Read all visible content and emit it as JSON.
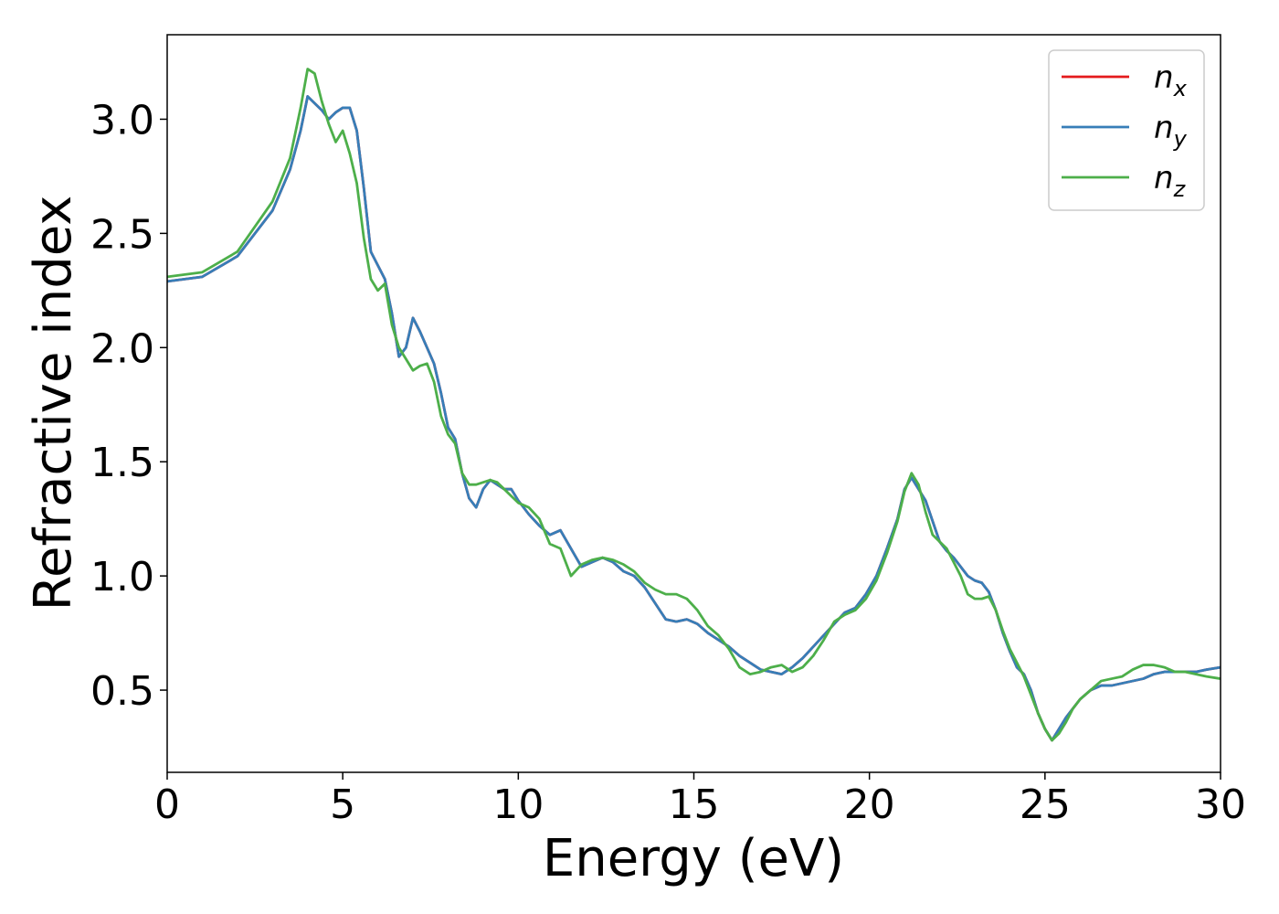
{
  "chart_data": {
    "type": "line",
    "title": "",
    "xlabel": "Energy (eV)",
    "ylabel": "Refractive index",
    "xlim": [
      0,
      30
    ],
    "ylim": [
      0.14,
      3.37
    ],
    "xticks": [
      0,
      5,
      10,
      15,
      20,
      25,
      30
    ],
    "yticks": [
      0.5,
      1.0,
      1.5,
      2.0,
      2.5,
      3.0
    ],
    "xtick_labels": [
      "0",
      "5",
      "10",
      "15",
      "20",
      "25",
      "30"
    ],
    "ytick_labels": [
      "0.5",
      "1.0",
      "1.5",
      "2.0",
      "2.5",
      "3.0"
    ],
    "grid": false,
    "legend_position": "top-right",
    "series": [
      {
        "name": "n",
        "sub": "x",
        "color": "#e41a1c",
        "x": [
          0,
          1,
          2,
          3,
          3.5,
          3.8,
          4.0,
          4.2,
          4.4,
          4.6,
          4.8,
          5.0,
          5.2,
          5.4,
          5.6,
          5.8,
          6.0,
          6.2,
          6.4,
          6.6,
          6.8,
          7.0,
          7.2,
          7.4,
          7.6,
          7.8,
          8.0,
          8.2,
          8.4,
          8.6,
          8.8,
          9.0,
          9.2,
          9.4,
          9.6,
          9.8,
          10.0,
          10.3,
          10.6,
          10.9,
          11.2,
          11.5,
          11.8,
          12.1,
          12.4,
          12.7,
          13.0,
          13.3,
          13.6,
          13.9,
          14.2,
          14.5,
          14.8,
          15.1,
          15.4,
          15.7,
          16.0,
          16.3,
          16.6,
          16.9,
          17.2,
          17.5,
          17.8,
          18.1,
          18.4,
          18.7,
          19.0,
          19.3,
          19.6,
          19.9,
          20.2,
          20.5,
          20.8,
          21.0,
          21.2,
          21.4,
          21.6,
          21.8,
          22.0,
          22.2,
          22.4,
          22.6,
          22.8,
          23.0,
          23.2,
          23.4,
          23.6,
          23.8,
          24.0,
          24.2,
          24.4,
          24.6,
          24.8,
          25.0,
          25.2,
          25.4,
          25.6,
          25.8,
          26.0,
          26.3,
          26.6,
          26.9,
          27.2,
          27.5,
          27.8,
          28.1,
          28.4,
          28.7,
          29.0,
          29.3,
          29.6,
          30.0
        ],
        "y": [
          2.29,
          2.31,
          2.4,
          2.6,
          2.78,
          2.95,
          3.1,
          3.07,
          3.04,
          3.0,
          3.03,
          3.05,
          3.05,
          2.95,
          2.7,
          2.42,
          2.36,
          2.3,
          2.15,
          1.96,
          2.0,
          2.13,
          2.07,
          2.0,
          1.93,
          1.8,
          1.65,
          1.6,
          1.45,
          1.34,
          1.3,
          1.38,
          1.42,
          1.4,
          1.38,
          1.38,
          1.33,
          1.27,
          1.22,
          1.18,
          1.2,
          1.12,
          1.04,
          1.06,
          1.08,
          1.06,
          1.02,
          1.0,
          0.95,
          0.88,
          0.81,
          0.8,
          0.81,
          0.79,
          0.75,
          0.72,
          0.69,
          0.65,
          0.62,
          0.59,
          0.58,
          0.57,
          0.6,
          0.64,
          0.69,
          0.74,
          0.79,
          0.84,
          0.86,
          0.92,
          1.0,
          1.12,
          1.25,
          1.38,
          1.43,
          1.38,
          1.33,
          1.24,
          1.15,
          1.11,
          1.08,
          1.04,
          1.0,
          0.98,
          0.97,
          0.93,
          0.85,
          0.75,
          0.67,
          0.6,
          0.57,
          0.5,
          0.4,
          0.33,
          0.28,
          0.33,
          0.38,
          0.42,
          0.46,
          0.5,
          0.52,
          0.52,
          0.53,
          0.54,
          0.55,
          0.57,
          0.58,
          0.58,
          0.58,
          0.58,
          0.59,
          0.6
        ]
      },
      {
        "name": "n",
        "sub": "y",
        "color": "#377eb8",
        "x": [
          0,
          1,
          2,
          3,
          3.5,
          3.8,
          4.0,
          4.2,
          4.4,
          4.6,
          4.8,
          5.0,
          5.2,
          5.4,
          5.6,
          5.8,
          6.0,
          6.2,
          6.4,
          6.6,
          6.8,
          7.0,
          7.2,
          7.4,
          7.6,
          7.8,
          8.0,
          8.2,
          8.4,
          8.6,
          8.8,
          9.0,
          9.2,
          9.4,
          9.6,
          9.8,
          10.0,
          10.3,
          10.6,
          10.9,
          11.2,
          11.5,
          11.8,
          12.1,
          12.4,
          12.7,
          13.0,
          13.3,
          13.6,
          13.9,
          14.2,
          14.5,
          14.8,
          15.1,
          15.4,
          15.7,
          16.0,
          16.3,
          16.6,
          16.9,
          17.2,
          17.5,
          17.8,
          18.1,
          18.4,
          18.7,
          19.0,
          19.3,
          19.6,
          19.9,
          20.2,
          20.5,
          20.8,
          21.0,
          21.2,
          21.4,
          21.6,
          21.8,
          22.0,
          22.2,
          22.4,
          22.6,
          22.8,
          23.0,
          23.2,
          23.4,
          23.6,
          23.8,
          24.0,
          24.2,
          24.4,
          24.6,
          24.8,
          25.0,
          25.2,
          25.4,
          25.6,
          25.8,
          26.0,
          26.3,
          26.6,
          26.9,
          27.2,
          27.5,
          27.8,
          28.1,
          28.4,
          28.7,
          29.0,
          29.3,
          29.6,
          30.0
        ],
        "y": [
          2.29,
          2.31,
          2.4,
          2.6,
          2.78,
          2.95,
          3.1,
          3.07,
          3.04,
          3.0,
          3.03,
          3.05,
          3.05,
          2.95,
          2.7,
          2.42,
          2.36,
          2.3,
          2.15,
          1.96,
          2.0,
          2.13,
          2.07,
          2.0,
          1.93,
          1.8,
          1.65,
          1.6,
          1.45,
          1.34,
          1.3,
          1.38,
          1.42,
          1.4,
          1.38,
          1.38,
          1.33,
          1.27,
          1.22,
          1.18,
          1.2,
          1.12,
          1.04,
          1.06,
          1.08,
          1.06,
          1.02,
          1.0,
          0.95,
          0.88,
          0.81,
          0.8,
          0.81,
          0.79,
          0.75,
          0.72,
          0.69,
          0.65,
          0.62,
          0.59,
          0.58,
          0.57,
          0.6,
          0.64,
          0.69,
          0.74,
          0.79,
          0.84,
          0.86,
          0.92,
          1.0,
          1.12,
          1.25,
          1.38,
          1.43,
          1.38,
          1.33,
          1.24,
          1.15,
          1.11,
          1.08,
          1.04,
          1.0,
          0.98,
          0.97,
          0.93,
          0.85,
          0.75,
          0.67,
          0.6,
          0.57,
          0.5,
          0.4,
          0.33,
          0.28,
          0.33,
          0.38,
          0.42,
          0.46,
          0.5,
          0.52,
          0.52,
          0.53,
          0.54,
          0.55,
          0.57,
          0.58,
          0.58,
          0.58,
          0.58,
          0.59,
          0.6
        ]
      },
      {
        "name": "n",
        "sub": "z",
        "color": "#4daf4a",
        "x": [
          0,
          1,
          2,
          3,
          3.5,
          3.8,
          4.0,
          4.2,
          4.4,
          4.6,
          4.8,
          5.0,
          5.2,
          5.4,
          5.6,
          5.8,
          6.0,
          6.2,
          6.4,
          6.6,
          6.8,
          7.0,
          7.2,
          7.4,
          7.6,
          7.8,
          8.0,
          8.2,
          8.4,
          8.6,
          8.8,
          9.0,
          9.2,
          9.4,
          9.6,
          9.8,
          10.0,
          10.3,
          10.6,
          10.9,
          11.2,
          11.5,
          11.8,
          12.1,
          12.4,
          12.7,
          13.0,
          13.3,
          13.6,
          13.9,
          14.2,
          14.5,
          14.8,
          15.1,
          15.4,
          15.7,
          16.0,
          16.3,
          16.6,
          16.9,
          17.2,
          17.5,
          17.8,
          18.1,
          18.4,
          18.7,
          19.0,
          19.3,
          19.6,
          19.9,
          20.2,
          20.5,
          20.8,
          21.0,
          21.2,
          21.4,
          21.6,
          21.8,
          22.0,
          22.2,
          22.4,
          22.6,
          22.8,
          23.0,
          23.2,
          23.4,
          23.6,
          23.8,
          24.0,
          24.2,
          24.4,
          24.6,
          24.8,
          25.0,
          25.2,
          25.4,
          25.6,
          25.8,
          26.0,
          26.3,
          26.6,
          26.9,
          27.2,
          27.5,
          27.8,
          28.1,
          28.4,
          28.7,
          29.0,
          29.3,
          29.6,
          30.0
        ],
        "y": [
          2.31,
          2.33,
          2.42,
          2.64,
          2.83,
          3.05,
          3.22,
          3.2,
          3.08,
          2.98,
          2.9,
          2.95,
          2.85,
          2.72,
          2.48,
          2.3,
          2.25,
          2.28,
          2.1,
          2.0,
          1.95,
          1.9,
          1.92,
          1.93,
          1.85,
          1.7,
          1.62,
          1.58,
          1.45,
          1.4,
          1.4,
          1.41,
          1.42,
          1.41,
          1.38,
          1.35,
          1.32,
          1.3,
          1.25,
          1.14,
          1.12,
          1.0,
          1.05,
          1.07,
          1.08,
          1.07,
          1.05,
          1.02,
          0.97,
          0.94,
          0.92,
          0.92,
          0.9,
          0.85,
          0.78,
          0.74,
          0.68,
          0.6,
          0.57,
          0.58,
          0.6,
          0.61,
          0.58,
          0.6,
          0.65,
          0.72,
          0.8,
          0.83,
          0.85,
          0.9,
          0.98,
          1.1,
          1.24,
          1.37,
          1.45,
          1.4,
          1.28,
          1.18,
          1.15,
          1.12,
          1.06,
          1.0,
          0.92,
          0.9,
          0.9,
          0.91,
          0.85,
          0.76,
          0.68,
          0.62,
          0.56,
          0.48,
          0.4,
          0.33,
          0.28,
          0.31,
          0.36,
          0.42,
          0.46,
          0.5,
          0.54,
          0.55,
          0.56,
          0.59,
          0.61,
          0.61,
          0.6,
          0.58,
          0.58,
          0.57,
          0.56,
          0.55
        ]
      }
    ]
  }
}
